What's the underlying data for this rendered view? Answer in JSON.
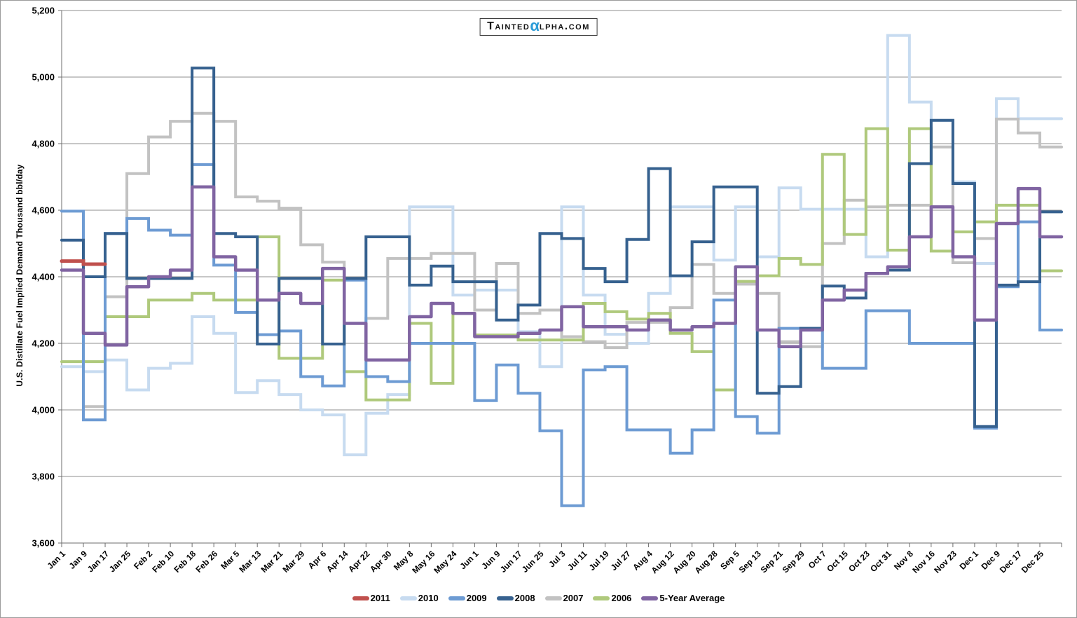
{
  "watermark": {
    "brand_prefix": "Tainted",
    "brand_alpha": "α",
    "brand_suffix": "lpha.com"
  },
  "chart_data": {
    "type": "line",
    "subtype": "step",
    "title": "",
    "xlabel": "",
    "ylabel": "U.S. Distillate Fuel Implied Demand Thousand bbl/day",
    "ylim": [
      3600,
      5200
    ],
    "ytick_step": 200,
    "grid": "horizontal-only",
    "legend_position": "bottom-center",
    "categories": [
      "Jan 1",
      "Jan 9",
      "Jan 17",
      "Jan 25",
      "Feb 2",
      "Feb 10",
      "Feb 18",
      "Feb 26",
      "Mar 5",
      "Mar 13",
      "Mar 21",
      "Mar 29",
      "Apr 6",
      "Apr 14",
      "Apr 22",
      "Apr 30",
      "May 8",
      "May 16",
      "May 24",
      "Jun 1",
      "Jun 9",
      "Jun 17",
      "Jun 25",
      "Jul 3",
      "Jul 11",
      "Jul 19",
      "Jul 27",
      "Aug 4",
      "Aug 12",
      "Aug 20",
      "Aug 28",
      "Sep 5",
      "Sep 13",
      "Sep 21",
      "Sep 29",
      "Oct 7",
      "Oct 15",
      "Oct 23",
      "Oct 31",
      "Nov 8",
      "Nov 16",
      "Nov 23",
      "Dec 1",
      "Dec 9",
      "Dec 17",
      "Dec 25"
    ],
    "series": [
      {
        "name": "2011",
        "color": "#C0504D",
        "values": [
          4447,
          4438
        ]
      },
      {
        "name": "2010",
        "color": "#C7DBF0",
        "values": [
          4130,
          4115,
          4150,
          4060,
          4125,
          4140,
          4280,
          4230,
          4052,
          4088,
          4046,
          4000,
          3985,
          3865,
          3990,
          4046,
          4610,
          4610,
          4345,
          4360,
          4360,
          4235,
          4130,
          4610,
          4345,
          4227,
          4200,
          4350,
          4610,
          4610,
          4450,
          4610,
          4460,
          4667,
          4603,
          4603,
          4603,
          4460,
          5125,
          4925,
          4870,
          4685,
          4440,
          4935,
          4875,
          4875
        ]
      },
      {
        "name": "2009",
        "color": "#6D9BD3",
        "values": [
          4597,
          3970,
          4530,
          4575,
          4540,
          4525,
          4737,
          4435,
          4293,
          4226,
          4237,
          4100,
          4072,
          4390,
          4100,
          4085,
          4200,
          4200,
          4200,
          4028,
          4135,
          4050,
          3937,
          3712,
          4120,
          4130,
          3940,
          3940,
          3870,
          3940,
          4330,
          3980,
          3930,
          4245,
          4245,
          4125,
          4125,
          4298,
          4298,
          4200,
          4200,
          4200,
          3945,
          4370,
          4565,
          4240
        ]
      },
      {
        "name": "2008",
        "color": "#36618F",
        "values": [
          4510,
          4400,
          4530,
          4395,
          4395,
          4395,
          5027,
          4530,
          4520,
          4198,
          4395,
          4395,
          4198,
          4395,
          4520,
          4520,
          4375,
          4432,
          4385,
          4385,
          4270,
          4315,
          4530,
          4515,
          4425,
          4385,
          4512,
          4725,
          4403,
          4505,
          4670,
          4670,
          4050,
          4070,
          4245,
          4372,
          4336,
          4410,
          4420,
          4740,
          4870,
          4680,
          3950,
          4375,
          4385,
          4595
        ]
      },
      {
        "name": "2007",
        "color": "#C2C2C2",
        "values": [
          4420,
          4010,
          4340,
          4710,
          4820,
          4867,
          4891,
          4867,
          4640,
          4627,
          4606,
          4496,
          4444,
          4260,
          4275,
          4455,
          4455,
          4470,
          4470,
          4300,
          4440,
          4290,
          4300,
          4220,
          4205,
          4187,
          4263,
          4263,
          4307,
          4437,
          4350,
          4378,
          4350,
          4205,
          4190,
          4500,
          4630,
          4610,
          4615,
          4615,
          4790,
          4442,
          4515,
          4874,
          4832,
          4790
        ]
      },
      {
        "name": "2006",
        "color": "#AFC97C",
        "values": [
          4145,
          4145,
          4280,
          4280,
          4330,
          4330,
          4350,
          4330,
          4330,
          4520,
          4155,
          4155,
          4390,
          4115,
          4030,
          4030,
          4260,
          4080,
          4290,
          4225,
          4225,
          4210,
          4210,
          4210,
          4320,
          4295,
          4273,
          4290,
          4230,
          4175,
          4060,
          4386,
          4403,
          4455,
          4437,
          4768,
          4527,
          4845,
          4480,
          4845,
          4477,
          4535,
          4565,
          4615,
          4615,
          4418
        ]
      },
      {
        "name": "5-Year Average",
        "color": "#8064A2",
        "values": [
          4420,
          4230,
          4195,
          4370,
          4400,
          4420,
          4670,
          4460,
          4420,
          4330,
          4350,
          4320,
          4425,
          4260,
          4150,
          4150,
          4280,
          4320,
          4290,
          4220,
          4220,
          4230,
          4240,
          4310,
          4250,
          4250,
          4240,
          4270,
          4240,
          4250,
          4260,
          4430,
          4240,
          4190,
          4240,
          4330,
          4360,
          4410,
          4430,
          4520,
          4610,
          4460,
          4270,
          4560,
          4665,
          4520
        ]
      }
    ],
    "draw_order": [
      "2010",
      "2007",
      "2006",
      "2009",
      "2008",
      "2011",
      "5-Year Average"
    ]
  }
}
